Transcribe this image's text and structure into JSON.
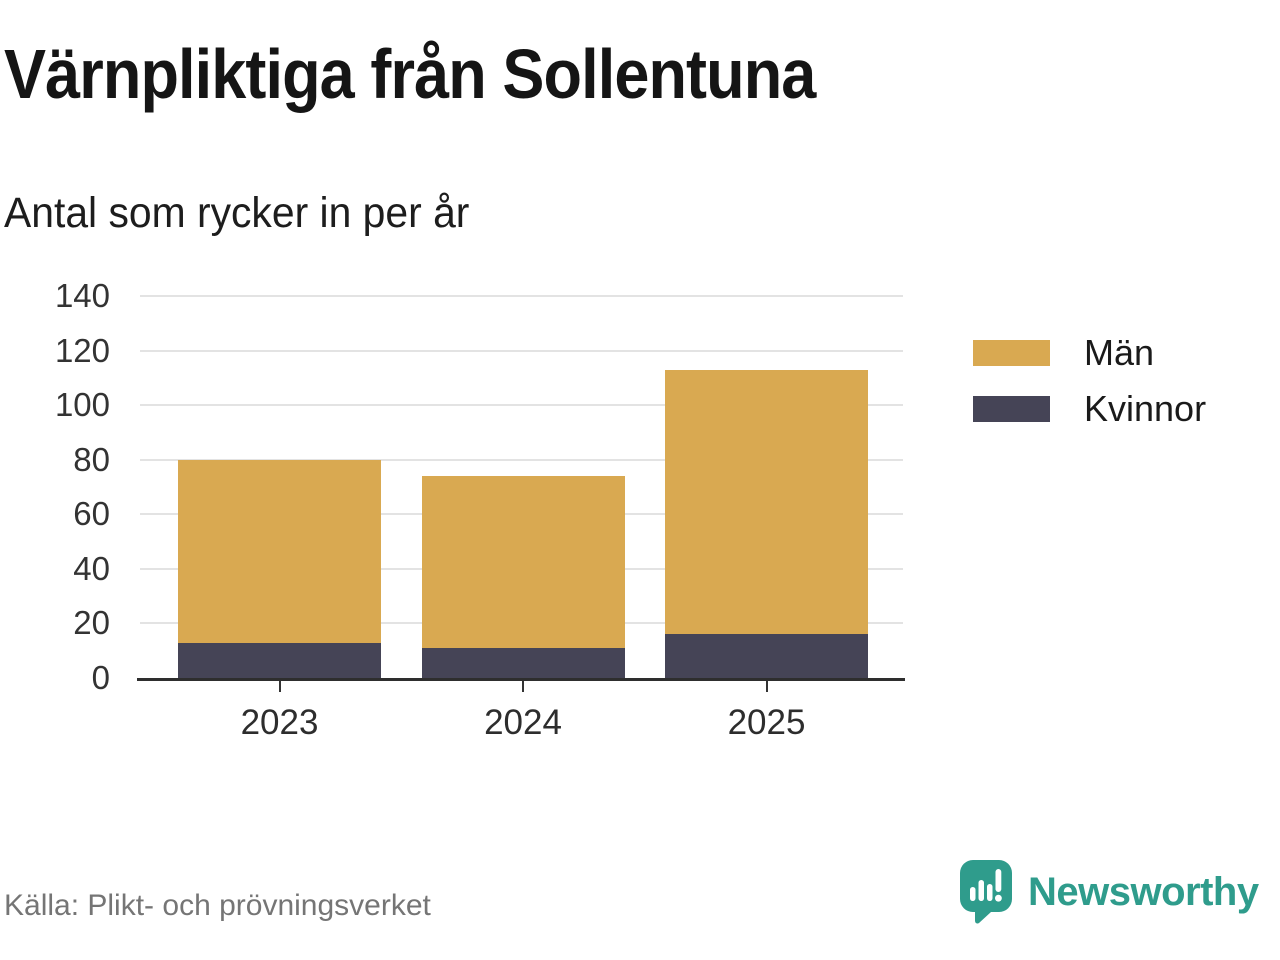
{
  "header": {
    "title": "Värnpliktiga från Sollentuna",
    "subtitle": "Antal som rycker in per år"
  },
  "chart_data": {
    "type": "bar",
    "stacked": true,
    "title": "Värnpliktiga från Sollentuna",
    "subtitle": "Antal som rycker in per år",
    "categories": [
      "2023",
      "2024",
      "2025"
    ],
    "series": [
      {
        "name": "Män",
        "color": "#D9A951",
        "values": [
          67,
          63,
          97
        ]
      },
      {
        "name": "Kvinnor",
        "color": "#454456",
        "values": [
          13,
          11,
          16
        ]
      }
    ],
    "totals": [
      80,
      74,
      113
    ],
    "xlabel": "",
    "ylabel": "",
    "ylim": [
      0,
      140
    ],
    "yticks": [
      0,
      20,
      40,
      60,
      80,
      100,
      120,
      140
    ],
    "grid": "horizontal",
    "gridline_color": "#E3E3E3",
    "axis_color": "#2e2e2e",
    "legend_position": "right"
  },
  "footer": {
    "source": "Källa: Plikt- och prövningsverket",
    "brand": "Newsworthy",
    "brand_color": "#2F9C8C"
  }
}
